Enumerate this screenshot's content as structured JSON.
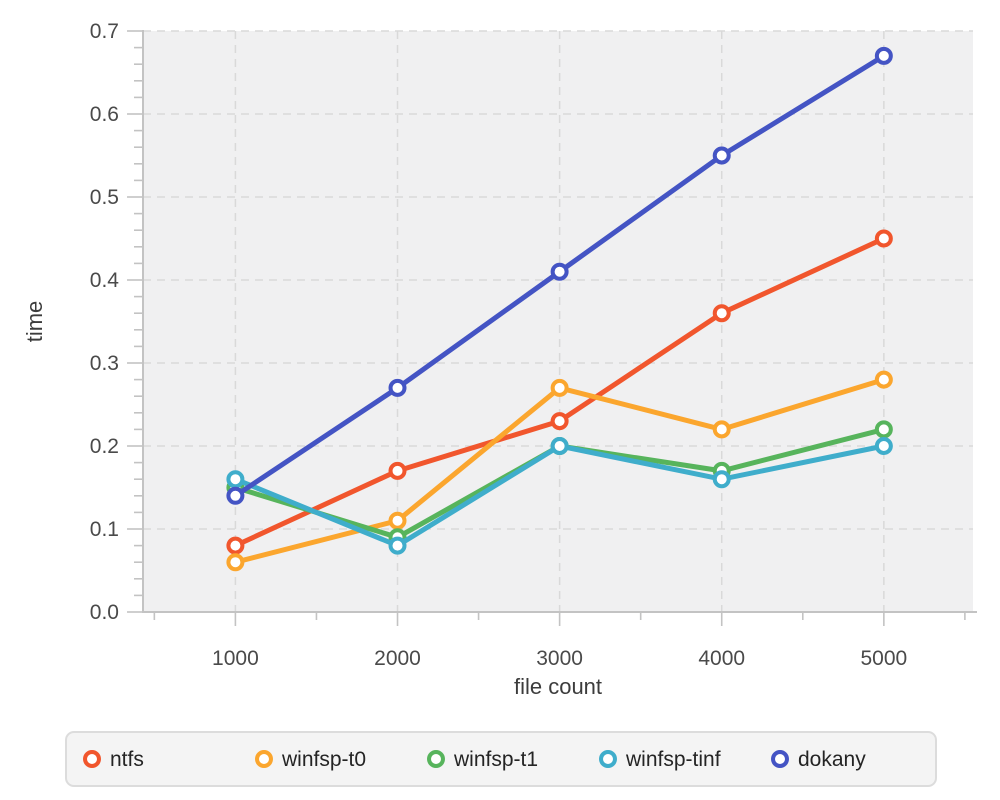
{
  "chart_data": {
    "type": "line",
    "title": "",
    "xlabel": "file count",
    "ylabel": "time",
    "x": [
      1000,
      2000,
      3000,
      4000,
      5000
    ],
    "x_tick_labels": [
      "1000",
      "2000",
      "3000",
      "4000",
      "5000"
    ],
    "y_ticks": [
      0.0,
      0.1,
      0.2,
      0.3,
      0.4,
      0.5,
      0.6,
      0.7
    ],
    "xlim": [
      430,
      5550
    ],
    "ylim": [
      0.0,
      0.7
    ],
    "grid": true,
    "legend_position": "bottom",
    "marker": "open-circle",
    "series": [
      {
        "name": "ntfs",
        "color": "#f1562d",
        "values": [
          0.08,
          0.17,
          0.23,
          0.36,
          0.45
        ]
      },
      {
        "name": "winfsp-t0",
        "color": "#fba62e",
        "values": [
          0.06,
          0.11,
          0.27,
          0.22,
          0.28
        ]
      },
      {
        "name": "winfsp-t1",
        "color": "#57b45c",
        "values": [
          0.15,
          0.09,
          0.2,
          0.17,
          0.22
        ]
      },
      {
        "name": "winfsp-tinf",
        "color": "#3fadcb",
        "values": [
          0.16,
          0.08,
          0.2,
          0.16,
          0.2
        ]
      },
      {
        "name": "dokany",
        "color": "#4454c4",
        "values": [
          0.14,
          0.27,
          0.41,
          0.55,
          0.67
        ]
      }
    ]
  },
  "colors": {
    "plot_bg": "#f0f0f1",
    "grid_line": "#d9d9d9",
    "axis_line": "#c3c3c3",
    "tick_mark": "#c3c3c3",
    "tick_label": "#4a4a4a",
    "axis_title": "#3c3c3c",
    "marker_fill": "#ffffff",
    "legend_bg": "#f4f4f4",
    "legend_border": "#dcdcdc",
    "legend_text": "#242424"
  }
}
